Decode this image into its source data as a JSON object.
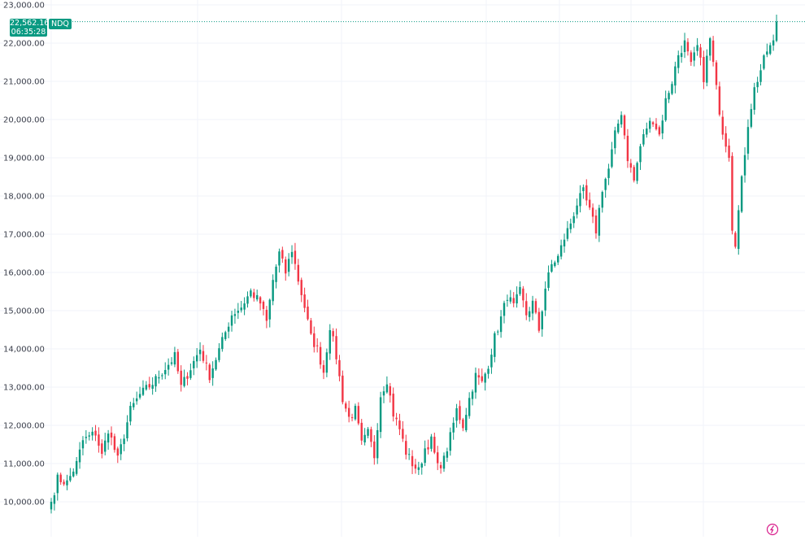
{
  "chart_data": {
    "type": "candlestick",
    "symbol": "NDQ",
    "last_price": "22,562.16",
    "countdown": "06:35:28",
    "ylim": [
      9500,
      23000
    ],
    "y_ticks": [
      "10,000.00",
      "11,000.00",
      "12,000.00",
      "13,000.00",
      "14,000.00",
      "15,000.00",
      "16,000.00",
      "17,000.00",
      "18,000.00",
      "19,000.00",
      "20,000.00",
      "21,000.00",
      "22,000.00",
      "23,000.00"
    ],
    "grid": true,
    "up_color": "#089981",
    "down_color": "#f23645",
    "anchors": [
      [
        0,
        10000
      ],
      [
        2,
        10600
      ],
      [
        5,
        10500
      ],
      [
        8,
        11000
      ],
      [
        10,
        11600
      ],
      [
        14,
        11800
      ],
      [
        16,
        11200
      ],
      [
        18,
        11900
      ],
      [
        21,
        11100
      ],
      [
        25,
        12400
      ],
      [
        28,
        12800
      ],
      [
        32,
        13100
      ],
      [
        36,
        13500
      ],
      [
        39,
        13800
      ],
      [
        41,
        13000
      ],
      [
        44,
        13500
      ],
      [
        47,
        14000
      ],
      [
        50,
        13300
      ],
      [
        54,
        14200
      ],
      [
        57,
        14900
      ],
      [
        60,
        15100
      ],
      [
        63,
        15500
      ],
      [
        66,
        15200
      ],
      [
        68,
        14700
      ],
      [
        70,
        15800
      ],
      [
        72,
        16500
      ],
      [
        74,
        16000
      ],
      [
        76,
        16600
      ],
      [
        78,
        15800
      ],
      [
        80,
        15100
      ],
      [
        82,
        14300
      ],
      [
        84,
        14000
      ],
      [
        86,
        13400
      ],
      [
        88,
        14600
      ],
      [
        90,
        13800
      ],
      [
        92,
        12700
      ],
      [
        94,
        12200
      ],
      [
        96,
        12400
      ],
      [
        98,
        11500
      ],
      [
        100,
        11800
      ],
      [
        102,
        11200
      ],
      [
        104,
        12800
      ],
      [
        106,
        13200
      ],
      [
        108,
        12300
      ],
      [
        110,
        11900
      ],
      [
        112,
        11300
      ],
      [
        114,
        11000
      ],
      [
        116,
        10800
      ],
      [
        118,
        11400
      ],
      [
        120,
        11600
      ],
      [
        122,
        10900
      ],
      [
        124,
        11100
      ],
      [
        126,
        11700
      ],
      [
        128,
        12400
      ],
      [
        130,
        12000
      ],
      [
        132,
        12700
      ],
      [
        134,
        13300
      ],
      [
        136,
        13100
      ],
      [
        138,
        13600
      ],
      [
        140,
        14300
      ],
      [
        142,
        14800
      ],
      [
        144,
        15400
      ],
      [
        146,
        15100
      ],
      [
        148,
        15500
      ],
      [
        150,
        14900
      ],
      [
        152,
        15200
      ],
      [
        154,
        14500
      ],
      [
        156,
        15600
      ],
      [
        158,
        16200
      ],
      [
        160,
        16400
      ],
      [
        162,
        16900
      ],
      [
        164,
        17300
      ],
      [
        166,
        17800
      ],
      [
        168,
        18100
      ],
      [
        170,
        17600
      ],
      [
        172,
        17100
      ],
      [
        174,
        18200
      ],
      [
        176,
        18700
      ],
      [
        178,
        19600
      ],
      [
        180,
        20200
      ],
      [
        182,
        19000
      ],
      [
        184,
        18400
      ],
      [
        186,
        19300
      ],
      [
        188,
        19800
      ],
      [
        190,
        20000
      ],
      [
        192,
        19600
      ],
      [
        194,
        20500
      ],
      [
        196,
        21000
      ],
      [
        198,
        21700
      ],
      [
        200,
        22000
      ],
      [
        202,
        21400
      ],
      [
        204,
        21900
      ],
      [
        206,
        21100
      ],
      [
        208,
        22100
      ],
      [
        210,
        20800
      ],
      [
        212,
        19700
      ],
      [
        214,
        19100
      ],
      [
        215,
        17200
      ],
      [
        216,
        16800
      ],
      [
        218,
        18400
      ],
      [
        220,
        19900
      ],
      [
        222,
        20800
      ],
      [
        224,
        21300
      ],
      [
        226,
        21800
      ],
      [
        228,
        22000
      ],
      [
        229,
        22562.16
      ]
    ]
  },
  "icons": {
    "logo": "tradingview-logo-icon"
  }
}
